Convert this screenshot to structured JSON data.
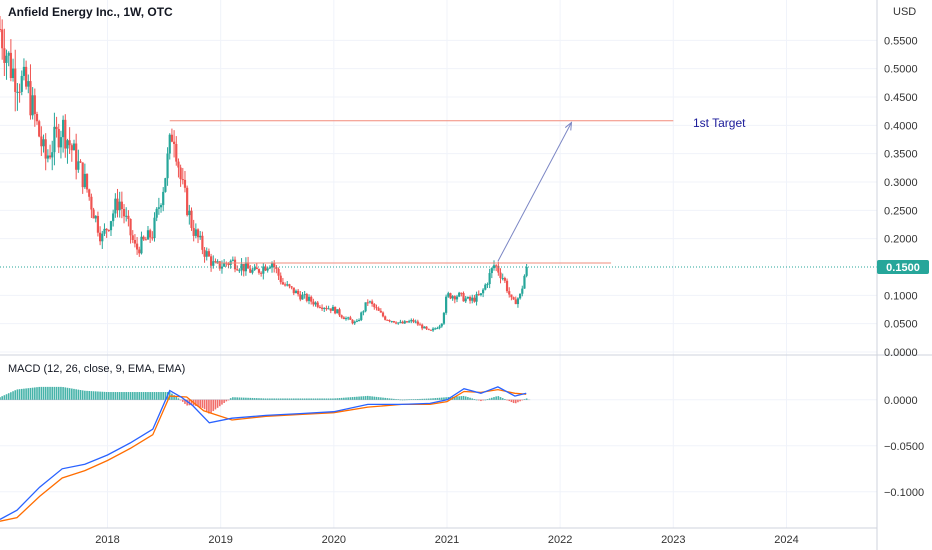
{
  "chart_data": {
    "type": "candlestick",
    "title": "Anfield Energy Inc., 1W, OTC",
    "currency_label": "USD",
    "last_price_label": "0.1500",
    "last_price": 0.15,
    "price_axis": {
      "range": [
        0,
        0.6
      ],
      "ticks": [
        {
          "v": 0.55,
          "t": "0.5500"
        },
        {
          "v": 0.5,
          "t": "0.5000"
        },
        {
          "v": 0.45,
          "t": "0.4500"
        },
        {
          "v": 0.4,
          "t": "0.4000"
        },
        {
          "v": 0.35,
          "t": "0.3500"
        },
        {
          "v": 0.3,
          "t": "0.3000"
        },
        {
          "v": 0.25,
          "t": "0.2500"
        },
        {
          "v": 0.2,
          "t": "0.2000"
        },
        {
          "v": 0.1,
          "t": "0.1000"
        },
        {
          "v": 0.05,
          "t": "0.0500"
        },
        {
          "v": 0,
          "t": "0.0000"
        }
      ]
    },
    "time_axis": {
      "range": [
        2017.05,
        2024.8
      ],
      "ticks": [
        {
          "v": 2018,
          "t": "2018"
        },
        {
          "v": 2019,
          "t": "2019"
        },
        {
          "v": 2020,
          "t": "2020"
        },
        {
          "v": 2021,
          "t": "2021"
        },
        {
          "v": 2022,
          "t": "2022"
        },
        {
          "v": 2023,
          "t": "2023"
        },
        {
          "v": 2024,
          "t": "2024"
        }
      ]
    },
    "price_path": [
      [
        2017.05,
        0.57
      ],
      [
        2017.15,
        0.5
      ],
      [
        2017.3,
        0.46
      ],
      [
        2017.45,
        0.34
      ],
      [
        2017.6,
        0.4
      ],
      [
        2017.8,
        0.3
      ],
      [
        2017.95,
        0.2
      ],
      [
        2018.1,
        0.27
      ],
      [
        2018.25,
        0.18
      ],
      [
        2018.4,
        0.21
      ],
      [
        2018.5,
        0.3
      ],
      [
        2018.58,
        0.4
      ],
      [
        2018.65,
        0.3
      ],
      [
        2018.75,
        0.22
      ],
      [
        2018.85,
        0.18
      ],
      [
        2018.95,
        0.15
      ],
      [
        2019.1,
        0.16
      ],
      [
        2019.3,
        0.14
      ],
      [
        2019.45,
        0.16
      ],
      [
        2019.55,
        0.12
      ],
      [
        2019.7,
        0.1
      ],
      [
        2019.85,
        0.085
      ],
      [
        2020.0,
        0.075
      ],
      [
        2020.1,
        0.06
      ],
      [
        2020.2,
        0.05
      ],
      [
        2020.3,
        0.09
      ],
      [
        2020.45,
        0.06
      ],
      [
        2020.6,
        0.05
      ],
      [
        2020.7,
        0.055
      ],
      [
        2020.85,
        0.035
      ],
      [
        2020.95,
        0.05
      ],
      [
        2021.0,
        0.1
      ],
      [
        2021.1,
        0.1
      ],
      [
        2021.2,
        0.09
      ],
      [
        2021.3,
        0.1
      ],
      [
        2021.42,
        0.155
      ],
      [
        2021.5,
        0.13
      ],
      [
        2021.58,
        0.085
      ],
      [
        2021.65,
        0.1
      ],
      [
        2021.7,
        0.15
      ]
    ],
    "annotations": {
      "resistance_line": {
        "price": 0.157,
        "x_start": 2018.95,
        "x_end": 2022.45
      },
      "target_line": {
        "price": 0.408,
        "x_start": 2018.55,
        "x_end": 2023.0
      },
      "target_arrow": {
        "from": [
          2021.45,
          0.16
        ],
        "to": [
          2022.1,
          0.405
        ]
      },
      "target_label": "1st Target"
    },
    "macd": {
      "title": "MACD (12, 26, close, 9, EMA, EMA)",
      "range": [
        -0.135,
        0.028
      ],
      "ticks": [
        {
          "v": 0,
          "t": "0.0000"
        },
        {
          "v": -0.05,
          "t": "−0.0500"
        },
        {
          "v": -0.1,
          "t": "−0.1000"
        }
      ],
      "macd_line": [
        [
          2017.05,
          -0.13
        ],
        [
          2017.2,
          -0.12
        ],
        [
          2017.4,
          -0.095
        ],
        [
          2017.6,
          -0.075
        ],
        [
          2017.8,
          -0.07
        ],
        [
          2018.0,
          -0.06
        ],
        [
          2018.2,
          -0.047
        ],
        [
          2018.4,
          -0.032
        ],
        [
          2018.55,
          0.01
        ],
        [
          2018.65,
          0.003
        ],
        [
          2018.75,
          -0.006
        ],
        [
          2018.9,
          -0.025
        ],
        [
          2019.1,
          -0.02
        ],
        [
          2019.4,
          -0.017
        ],
        [
          2019.7,
          -0.015
        ],
        [
          2020.0,
          -0.013
        ],
        [
          2020.3,
          -0.005
        ],
        [
          2020.6,
          -0.005
        ],
        [
          2020.85,
          -0.004
        ],
        [
          2021.0,
          0.0
        ],
        [
          2021.15,
          0.012
        ],
        [
          2021.3,
          0.007
        ],
        [
          2021.45,
          0.014
        ],
        [
          2021.6,
          0.004
        ],
        [
          2021.7,
          0.007
        ]
      ],
      "signal_line": [
        [
          2017.05,
          -0.132
        ],
        [
          2017.2,
          -0.128
        ],
        [
          2017.4,
          -0.105
        ],
        [
          2017.6,
          -0.085
        ],
        [
          2017.8,
          -0.077
        ],
        [
          2018.0,
          -0.066
        ],
        [
          2018.2,
          -0.053
        ],
        [
          2018.4,
          -0.038
        ],
        [
          2018.55,
          0.004
        ],
        [
          2018.7,
          0.003
        ],
        [
          2018.85,
          -0.012
        ],
        [
          2019.1,
          -0.022
        ],
        [
          2019.4,
          -0.018
        ],
        [
          2019.7,
          -0.016
        ],
        [
          2020.0,
          -0.014
        ],
        [
          2020.3,
          -0.008
        ],
        [
          2020.6,
          -0.005
        ],
        [
          2020.85,
          -0.005
        ],
        [
          2021.0,
          -0.002
        ],
        [
          2021.15,
          0.009
        ],
        [
          2021.3,
          0.008
        ],
        [
          2021.45,
          0.011
        ],
        [
          2021.6,
          0.007
        ],
        [
          2021.7,
          0.006
        ]
      ]
    },
    "colors": {
      "up": "#26a69a",
      "down": "#ef5350",
      "macd": "#2962ff",
      "signal": "#ff6d00",
      "hline": "#f28c7c",
      "arrow": "#7b86c4",
      "target_text": "#1a1a99",
      "price_tag": "#26a69a",
      "last_line": "#26a69a"
    }
  }
}
